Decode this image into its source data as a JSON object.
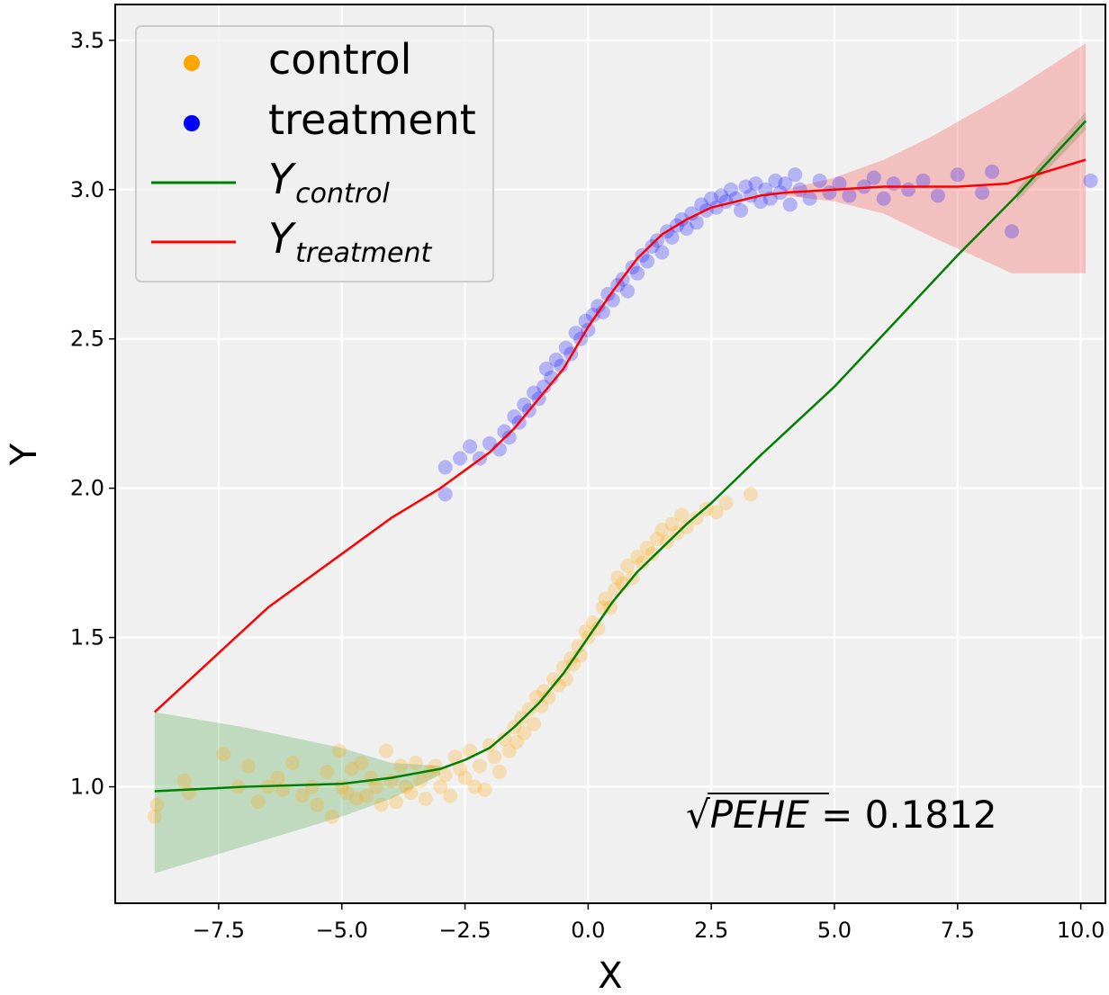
{
  "chart_data": {
    "type": "scatter",
    "xlabel": "X",
    "ylabel": "Y",
    "xlim": [
      -9.6,
      10.5
    ],
    "ylim": [
      0.61,
      3.62
    ],
    "grid": true,
    "background": "#f0f0f0",
    "x_ticks": [
      -7.5,
      -5.0,
      -2.5,
      0.0,
      2.5,
      5.0,
      7.5,
      10.0
    ],
    "x_tick_labels": [
      "−7.5",
      "−5.0",
      "−2.5",
      "0.0",
      "2.5",
      "5.0",
      "7.5",
      "10.0"
    ],
    "y_ticks": [
      1.0,
      1.5,
      2.0,
      2.5,
      3.0,
      3.5
    ],
    "y_tick_labels": [
      "1.0",
      "1.5",
      "2.0",
      "2.5",
      "3.0",
      "3.5"
    ],
    "legend": {
      "location": "upper-left",
      "entries": [
        {
          "label": "control",
          "marker": "dot",
          "color": "#ffa500"
        },
        {
          "label": "treatment",
          "marker": "dot",
          "color": "#0000ff"
        },
        {
          "label_main": "Y",
          "label_sub": "control",
          "marker": "line",
          "color": "#008000"
        },
        {
          "label_main": "Y",
          "label_sub": "treatment",
          "marker": "line",
          "color": "#ff0000"
        }
      ]
    },
    "annotation": {
      "symbol": "√",
      "text": "PEHE",
      "value": " = 0.1812",
      "position": "bottom-right"
    },
    "series": [
      {
        "name": "Y_control",
        "type": "line",
        "color": "#008000",
        "x": [
          -8.8,
          -7.0,
          -5.0,
          -4.0,
          -3.0,
          -2.5,
          -2.0,
          -1.5,
          -1.0,
          -0.5,
          0.0,
          0.5,
          1.0,
          1.5,
          2.0,
          2.5,
          3.0,
          3.5,
          5.0,
          7.5,
          8.7,
          10.1
        ],
        "y": [
          0.985,
          1.0,
          1.01,
          1.03,
          1.06,
          1.09,
          1.13,
          1.2,
          1.28,
          1.38,
          1.5,
          1.62,
          1.72,
          1.8,
          1.88,
          1.95,
          2.03,
          2.11,
          2.34,
          2.78,
          2.98,
          3.23
        ]
      },
      {
        "name": "Y_treatment",
        "type": "line",
        "color": "#ff0000",
        "x": [
          -8.8,
          -6.5,
          -5.0,
          -4.0,
          -3.0,
          -2.0,
          -1.5,
          -1.0,
          -0.5,
          0.0,
          0.5,
          1.0,
          1.5,
          2.0,
          2.5,
          3.0,
          3.5,
          4.0,
          5.0,
          6.0,
          7.5,
          8.5,
          10.1
        ],
        "y": [
          1.25,
          1.6,
          1.78,
          1.9,
          2.0,
          2.12,
          2.2,
          2.3,
          2.4,
          2.54,
          2.66,
          2.77,
          2.85,
          2.9,
          2.94,
          2.96,
          2.98,
          2.99,
          3.0,
          3.01,
          3.01,
          3.02,
          3.1
        ]
      }
    ],
    "bands": [
      {
        "name": "control-uncertainty",
        "color": "#008000",
        "x": [
          -8.8,
          -7.0,
          -5.0,
          -4.0,
          -3.0
        ],
        "upper": [
          1.25,
          1.2,
          1.13,
          1.08,
          1.07
        ],
        "lower": [
          0.71,
          0.8,
          0.9,
          0.96,
          1.04
        ]
      },
      {
        "name": "control-uncertainty-right",
        "color": "#008000",
        "x": [
          8.7,
          10.1
        ],
        "upper": [
          3.0,
          3.26
        ],
        "lower": [
          2.96,
          3.2
        ]
      },
      {
        "name": "treatment-uncertainty",
        "color": "#ff0000",
        "x": [
          4.0,
          5.0,
          6.0,
          7.0,
          8.6,
          10.1
        ],
        "upper": [
          3.0,
          3.04,
          3.1,
          3.18,
          3.33,
          3.49
        ],
        "lower": [
          2.98,
          2.96,
          2.92,
          2.84,
          2.72,
          2.72
        ]
      }
    ],
    "scatter": [
      {
        "name": "control",
        "color": "#ffa500",
        "points": [
          [
            -8.8,
            0.9
          ],
          [
            -8.75,
            0.94
          ],
          [
            -8.2,
            1.02
          ],
          [
            -8.1,
            0.98
          ],
          [
            -7.4,
            1.11
          ],
          [
            -7.1,
            1.0
          ],
          [
            -6.9,
            1.07
          ],
          [
            -6.7,
            0.95
          ],
          [
            -6.5,
            1.0
          ],
          [
            -6.3,
            1.03
          ],
          [
            -6.2,
            0.99
          ],
          [
            -6.0,
            1.08
          ],
          [
            -5.8,
            0.97
          ],
          [
            -5.6,
            1.0
          ],
          [
            -5.5,
            0.94
          ],
          [
            -5.3,
            1.05
          ],
          [
            -5.2,
            0.9
          ],
          [
            -5.05,
            1.12
          ],
          [
            -5.0,
            1.0
          ],
          [
            -4.9,
            0.98
          ],
          [
            -4.8,
            1.06
          ],
          [
            -4.7,
            0.96
          ],
          [
            -4.6,
            1.08
          ],
          [
            -4.5,
            0.97
          ],
          [
            -4.4,
            1.03
          ],
          [
            -4.3,
            1.0
          ],
          [
            -4.2,
            0.94
          ],
          [
            -4.1,
            1.12
          ],
          [
            -4.0,
            1.02
          ],
          [
            -3.9,
            0.95
          ],
          [
            -3.8,
            1.07
          ],
          [
            -3.7,
            1.0
          ],
          [
            -3.6,
            0.98
          ],
          [
            -3.5,
            1.08
          ],
          [
            -3.4,
            1.02
          ],
          [
            -3.3,
            0.96
          ],
          [
            -3.2,
            1.05
          ],
          [
            -3.1,
            1.07
          ],
          [
            -3.0,
            1.0
          ],
          [
            -2.9,
            1.04
          ],
          [
            -2.8,
            0.97
          ],
          [
            -2.7,
            1.1
          ],
          [
            -2.6,
            1.06
          ],
          [
            -2.5,
            1.03
          ],
          [
            -2.4,
            1.12
          ],
          [
            -2.3,
            1.0
          ],
          [
            -2.2,
            1.07
          ],
          [
            -2.1,
            0.99
          ],
          [
            -2.0,
            1.14
          ],
          [
            -1.9,
            1.1
          ],
          [
            -1.8,
            1.05
          ],
          [
            -1.7,
            1.16
          ],
          [
            -1.6,
            1.12
          ],
          [
            -1.5,
            1.2
          ],
          [
            -1.45,
            1.15
          ],
          [
            -1.35,
            1.23
          ],
          [
            -1.3,
            1.18
          ],
          [
            -1.2,
            1.26
          ],
          [
            -1.1,
            1.21
          ],
          [
            -1.05,
            1.3
          ],
          [
            -0.95,
            1.27
          ],
          [
            -0.9,
            1.32
          ],
          [
            -0.8,
            1.3
          ],
          [
            -0.7,
            1.36
          ],
          [
            -0.6,
            1.34
          ],
          [
            -0.5,
            1.4
          ],
          [
            -0.45,
            1.36
          ],
          [
            -0.35,
            1.43
          ],
          [
            -0.3,
            1.41
          ],
          [
            -0.2,
            1.47
          ],
          [
            -0.15,
            1.44
          ],
          [
            -0.05,
            1.52
          ],
          [
            0.0,
            1.5
          ],
          [
            0.1,
            1.55
          ],
          [
            0.2,
            1.53
          ],
          [
            0.3,
            1.6
          ],
          [
            0.35,
            1.63
          ],
          [
            0.45,
            1.6
          ],
          [
            0.55,
            1.66
          ],
          [
            0.6,
            1.7
          ],
          [
            0.7,
            1.68
          ],
          [
            0.8,
            1.74
          ],
          [
            0.9,
            1.7
          ],
          [
            1.0,
            1.77
          ],
          [
            1.1,
            1.75
          ],
          [
            1.2,
            1.8
          ],
          [
            1.3,
            1.78
          ],
          [
            1.4,
            1.83
          ],
          [
            1.5,
            1.86
          ],
          [
            1.6,
            1.82
          ],
          [
            1.7,
            1.88
          ],
          [
            1.8,
            1.85
          ],
          [
            1.9,
            1.91
          ],
          [
            2.0,
            1.87
          ],
          [
            2.2,
            1.9
          ],
          [
            2.4,
            1.93
          ],
          [
            2.6,
            1.92
          ],
          [
            2.8,
            1.95
          ],
          [
            3.3,
            1.98
          ]
        ]
      },
      {
        "name": "treatment",
        "color": "#0000ff",
        "points": [
          [
            -2.9,
            1.98
          ],
          [
            -2.9,
            2.07
          ],
          [
            -2.6,
            2.1
          ],
          [
            -2.4,
            2.14
          ],
          [
            -2.2,
            2.1
          ],
          [
            -2.0,
            2.15
          ],
          [
            -1.8,
            2.13
          ],
          [
            -1.7,
            2.19
          ],
          [
            -1.6,
            2.17
          ],
          [
            -1.5,
            2.24
          ],
          [
            -1.4,
            2.22
          ],
          [
            -1.3,
            2.28
          ],
          [
            -1.2,
            2.26
          ],
          [
            -1.1,
            2.32
          ],
          [
            -1.0,
            2.3
          ],
          [
            -0.9,
            2.34
          ],
          [
            -0.85,
            2.4
          ],
          [
            -0.75,
            2.37
          ],
          [
            -0.65,
            2.43
          ],
          [
            -0.55,
            2.41
          ],
          [
            -0.45,
            2.47
          ],
          [
            -0.35,
            2.45
          ],
          [
            -0.25,
            2.52
          ],
          [
            -0.15,
            2.5
          ],
          [
            -0.05,
            2.56
          ],
          [
            0.0,
            2.53
          ],
          [
            0.1,
            2.58
          ],
          [
            0.2,
            2.61
          ],
          [
            0.3,
            2.59
          ],
          [
            0.4,
            2.65
          ],
          [
            0.5,
            2.63
          ],
          [
            0.6,
            2.68
          ],
          [
            0.7,
            2.7
          ],
          [
            0.8,
            2.66
          ],
          [
            0.9,
            2.74
          ],
          [
            1.0,
            2.72
          ],
          [
            1.1,
            2.78
          ],
          [
            1.2,
            2.76
          ],
          [
            1.3,
            2.81
          ],
          [
            1.4,
            2.83
          ],
          [
            1.5,
            2.79
          ],
          [
            1.6,
            2.86
          ],
          [
            1.7,
            2.84
          ],
          [
            1.8,
            2.88
          ],
          [
            1.9,
            2.9
          ],
          [
            2.0,
            2.87
          ],
          [
            2.1,
            2.92
          ],
          [
            2.2,
            2.89
          ],
          [
            2.3,
            2.95
          ],
          [
            2.4,
            2.93
          ],
          [
            2.5,
            2.97
          ],
          [
            2.6,
            2.94
          ],
          [
            2.7,
            2.98
          ],
          [
            2.8,
            2.96
          ],
          [
            2.9,
            3.0
          ],
          [
            3.0,
            2.97
          ],
          [
            3.1,
            2.93
          ],
          [
            3.2,
            3.01
          ],
          [
            3.3,
            2.98
          ],
          [
            3.4,
            3.02
          ],
          [
            3.5,
            2.96
          ],
          [
            3.6,
            3.0
          ],
          [
            3.7,
            2.97
          ],
          [
            3.8,
            3.03
          ],
          [
            3.9,
            2.99
          ],
          [
            4.0,
            3.02
          ],
          [
            4.1,
            2.95
          ],
          [
            4.2,
            3.05
          ],
          [
            4.3,
            3.0
          ],
          [
            4.5,
            2.97
          ],
          [
            4.7,
            3.03
          ],
          [
            4.9,
            2.99
          ],
          [
            5.1,
            3.02
          ],
          [
            5.3,
            2.98
          ],
          [
            5.6,
            3.01
          ],
          [
            5.8,
            3.04
          ],
          [
            6.0,
            2.97
          ],
          [
            6.2,
            3.02
          ],
          [
            6.5,
            3.0
          ],
          [
            6.8,
            3.03
          ],
          [
            7.1,
            2.98
          ],
          [
            7.5,
            3.05
          ],
          [
            8.0,
            2.99
          ],
          [
            8.2,
            3.06
          ],
          [
            8.6,
            2.86
          ],
          [
            10.2,
            3.03
          ]
        ]
      }
    ]
  }
}
